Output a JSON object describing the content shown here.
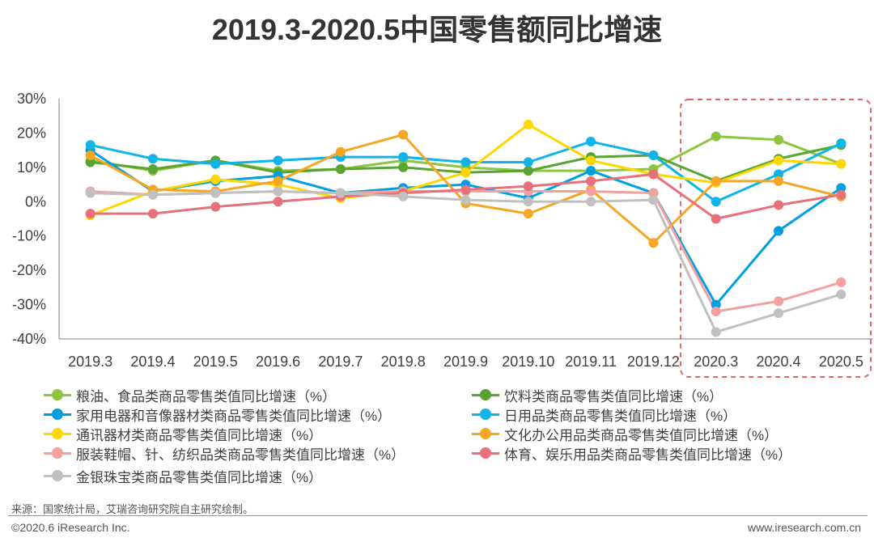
{
  "title": "2019.3-2020.5中国零售额同比增速",
  "chart_data": {
    "type": "line",
    "title": "2019.3-2020.5中国零售额同比增速",
    "categories": [
      "2019.3",
      "2019.4",
      "2019.5",
      "2019.6",
      "2019.7",
      "2019.8",
      "2019.9",
      "2019.10",
      "2019.11",
      "2019.12",
      "2020.3",
      "2020.4",
      "2020.5"
    ],
    "ylim": [
      -40,
      30
    ],
    "yticks": [
      30,
      20,
      10,
      0,
      -10,
      -20,
      -30,
      -40
    ],
    "ytick_labels": [
      "30%",
      "20%",
      "10%",
      "0%",
      "-10%",
      "-20%",
      "-30%",
      "-40%"
    ],
    "grid": false,
    "highlight": {
      "from": "2020.3",
      "to": "2020.5",
      "color": "#e06666"
    },
    "series": [
      {
        "name": "粮油、食品类商品零售类值同比增速（%）",
        "color": "#8cc63f",
        "values": [
          12,
          9,
          12,
          9,
          9.5,
          12,
          10,
          9,
          9,
          9.5,
          19,
          18,
          11
        ]
      },
      {
        "name": "饮料类商品零售类值同比增速（%）",
        "color": "#5aa532",
        "values": [
          11.5,
          9.5,
          12,
          8.5,
          9.5,
          10,
          8.5,
          9,
          13,
          13.5,
          6,
          12.5,
          16.5
        ]
      },
      {
        "name": "家用电器和音像器材类商品零售类值同比增速（%）",
        "color": "#00a0e0",
        "values": [
          15,
          3,
          6,
          7.5,
          2.5,
          4,
          5,
          1,
          9,
          2.5,
          -30,
          -8.5,
          4
        ]
      },
      {
        "name": "日用品类商品零售类值同比增速（%）",
        "color": "#10b4e8",
        "values": [
          16.5,
          12.5,
          11,
          12,
          13,
          13,
          11.5,
          11.5,
          17.5,
          13.5,
          0,
          8,
          17
        ]
      },
      {
        "name": "通讯器材类商品零售类值同比增速（%）",
        "color": "#ffd700",
        "values": [
          -4,
          3,
          6.5,
          5,
          1,
          3,
          8.5,
          22.5,
          12,
          8,
          5.5,
          12,
          11
        ]
      },
      {
        "name": "文化办公用品类商品零售类值同比增速（%）",
        "color": "#f5a623",
        "values": [
          13.5,
          3.5,
          3,
          6,
          14.5,
          19.5,
          -0.5,
          -3.5,
          3.5,
          -12,
          6,
          6,
          1.5
        ]
      },
      {
        "name": "服装鞋帽、针、纺织品类商品零售类值同比增速（%）",
        "color": "#f4a09c",
        "values": [
          3,
          2,
          2.5,
          3,
          2.5,
          3,
          3,
          3,
          3,
          2.5,
          -32,
          -29,
          -23.5
        ]
      },
      {
        "name": "体育、娱乐用品类商品零售类值同比增速（%）",
        "color": "#e8707a",
        "values": [
          -3.5,
          -3.5,
          -1.5,
          0,
          1.5,
          2.5,
          3.5,
          4.5,
          6,
          8,
          -5,
          -1,
          2
        ]
      },
      {
        "name": "金银珠宝类商品零售类值同比增速（%）",
        "color": "#c0c0c0",
        "values": [
          2.5,
          2,
          2.5,
          3,
          2.5,
          1.5,
          0.5,
          0,
          0,
          0.5,
          -38,
          -32.5,
          -27
        ]
      }
    ]
  },
  "footer": {
    "source": "来源：国家统计局，艾瑞咨询研究院自主研究绘制。",
    "copyright": "©2020.6 iResearch Inc.",
    "website": "www.iresearch.com.cn"
  }
}
